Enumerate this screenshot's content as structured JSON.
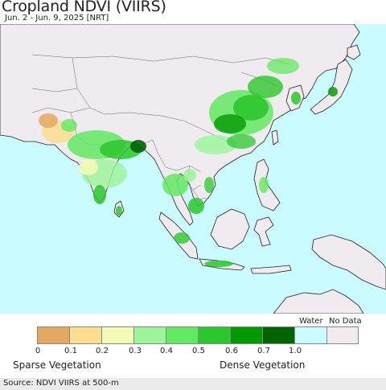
{
  "title": "Cropland NDVI (VIIRS)",
  "subtitle": "Jun. 2 - Jun. 9, 2025 [NRT]",
  "legend": {
    "water_label": "Water",
    "nodata_label": "No Data",
    "bins": [
      {
        "color": "#e4a961"
      },
      {
        "color": "#fddd90"
      },
      {
        "color": "#f3fbb6"
      },
      {
        "color": "#9bf59b"
      },
      {
        "color": "#63e863"
      },
      {
        "color": "#2cc72c"
      },
      {
        "color": "#019901"
      },
      {
        "color": "#006400"
      }
    ],
    "water_color": "#c9fbff",
    "nodata_color": "#efebef",
    "ticks": [
      "0",
      "0.1",
      "0.2",
      "0.3",
      "0.4",
      "0.5",
      "0.6",
      "0.7",
      "1.0"
    ],
    "sparse_label": "Sparse Vegetation",
    "dense_label": "Dense Vegetation"
  },
  "source": "Source: NDVI VIIRS at 500-m",
  "colors": {
    "ocean": "#c9fbff",
    "land_nodata": "#efebef",
    "border": "#555555",
    "coast": "#222222"
  }
}
